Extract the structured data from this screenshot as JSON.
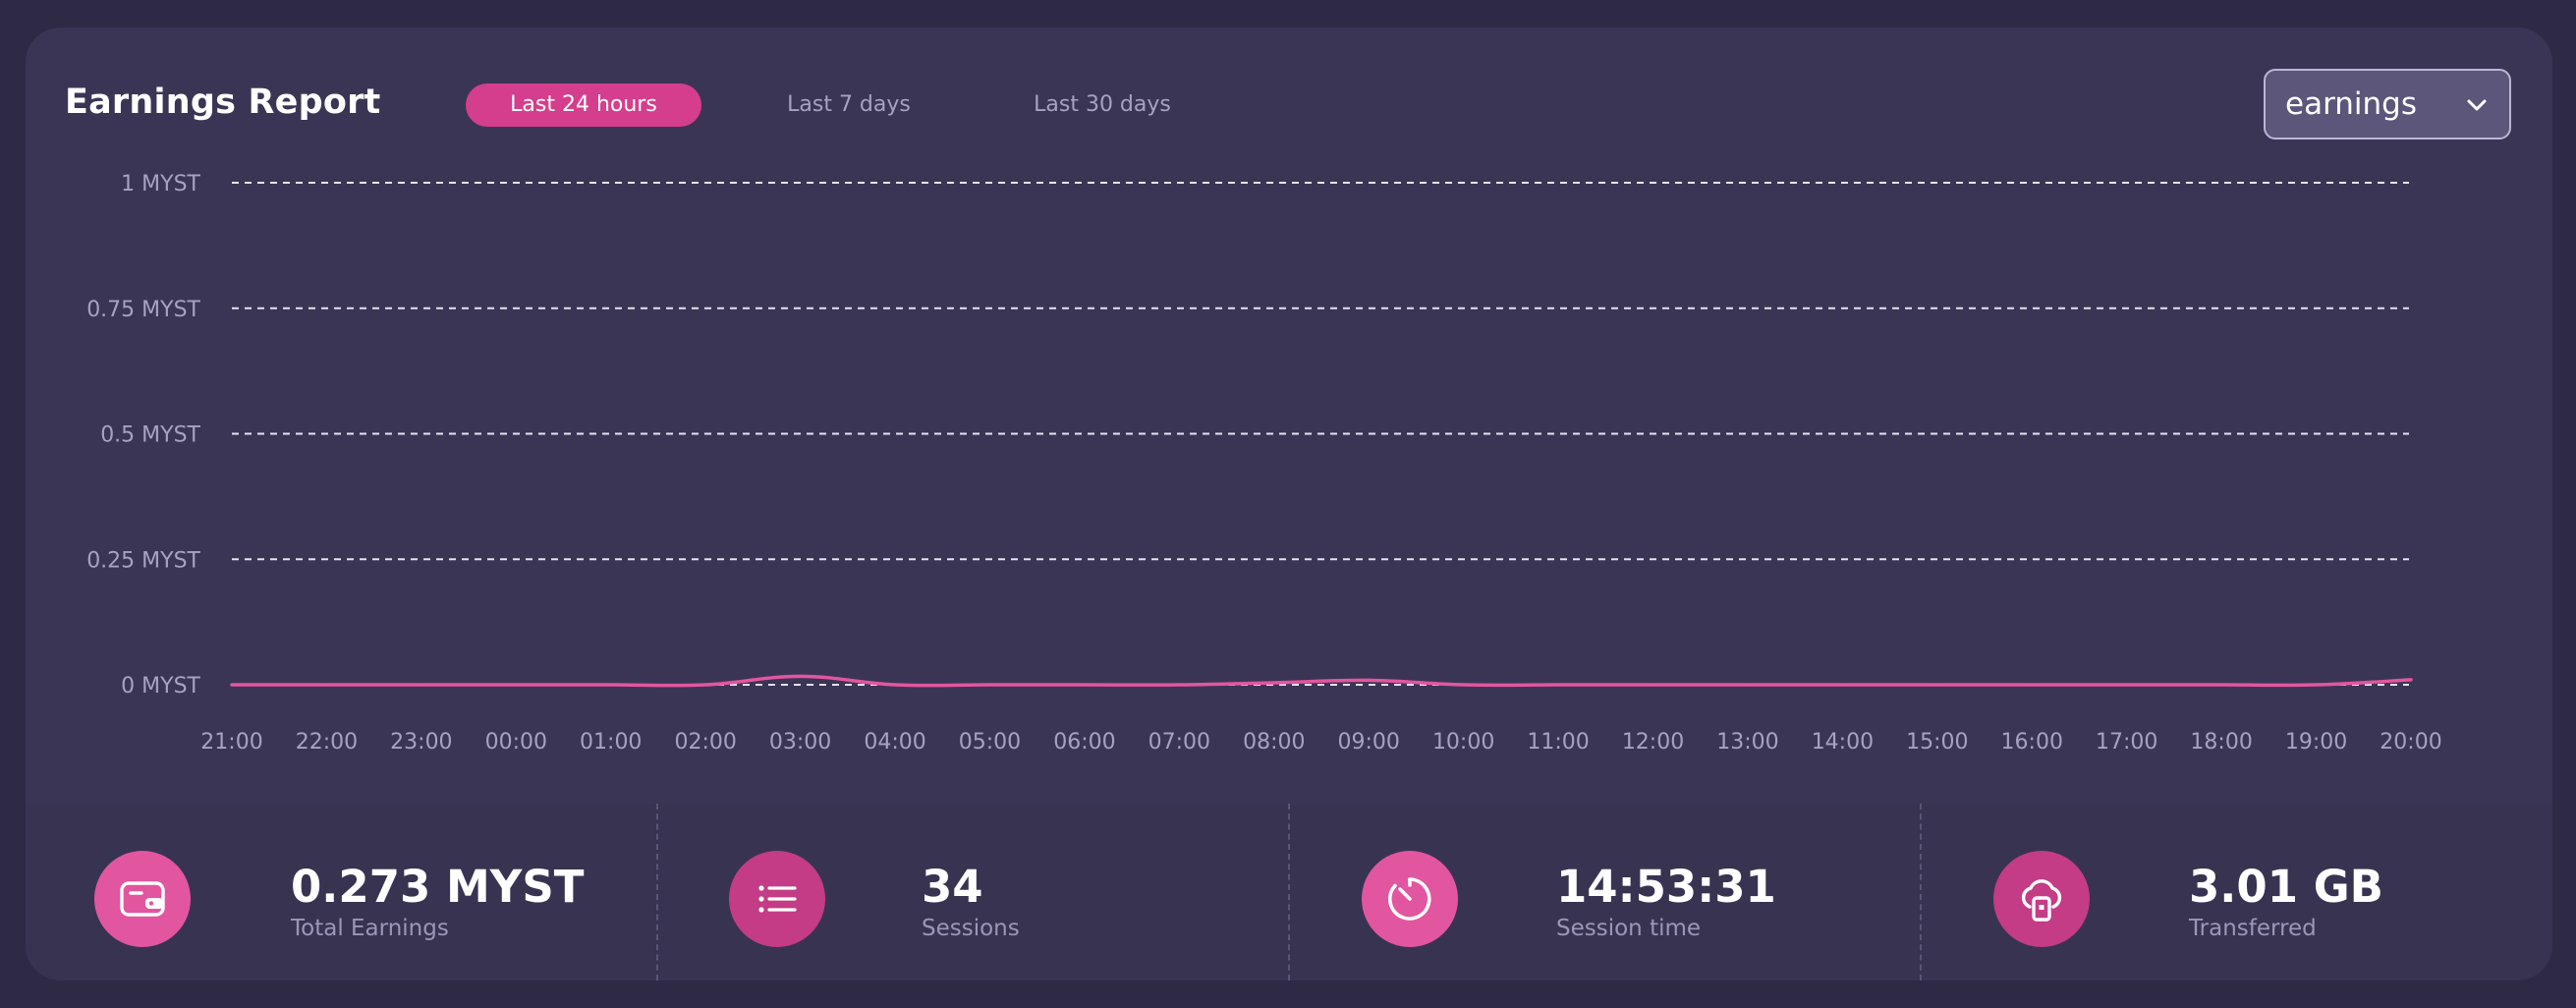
{
  "header": {
    "title": "Earnings Report",
    "tabs": [
      {
        "label": "Last 24 hours",
        "active": true
      },
      {
        "label": "Last 7 days",
        "active": false
      },
      {
        "label": "Last 30 days",
        "active": false
      }
    ],
    "metric_select": {
      "value": "earnings",
      "icon": "chevron-down-icon"
    }
  },
  "colors": {
    "accent": "#d43e8d",
    "line": "#e2569f",
    "card": "#393352",
    "background": "#2e2a45"
  },
  "chart_data": {
    "type": "line",
    "title": "",
    "xlabel": "",
    "ylabel": "",
    "x": [
      "21:00",
      "22:00",
      "23:00",
      "00:00",
      "01:00",
      "02:00",
      "03:00",
      "04:00",
      "05:00",
      "06:00",
      "07:00",
      "08:00",
      "09:00",
      "10:00",
      "11:00",
      "12:00",
      "13:00",
      "14:00",
      "15:00",
      "16:00",
      "17:00",
      "18:00",
      "19:00",
      "20:00"
    ],
    "y_ticks": [
      {
        "value": 0,
        "label": "0 MYST"
      },
      {
        "value": 0.25,
        "label": "0.25 MYST"
      },
      {
        "value": 0.5,
        "label": "0.5 MYST"
      },
      {
        "value": 0.75,
        "label": "0.75 MYST"
      },
      {
        "value": 1,
        "label": "1 MYST"
      }
    ],
    "ylim": [
      0,
      1
    ],
    "grid": true,
    "series": [
      {
        "values": [
          0,
          0,
          0,
          0,
          0,
          0,
          0.017,
          0,
          0,
          0,
          0,
          0.004,
          0.009,
          0,
          0,
          0,
          0,
          0,
          0,
          0,
          0,
          0,
          0,
          0.01
        ]
      }
    ]
  },
  "stats": [
    {
      "value": "0.273 MYST",
      "label": "Total Earnings",
      "icon": "wallet-icon",
      "color": "#e2569f"
    },
    {
      "value": "34",
      "label": "Sessions",
      "icon": "list-icon",
      "color": "#c33c85"
    },
    {
      "value": "14:53:31",
      "label": "Session time",
      "icon": "timer-icon",
      "color": "#e2569f"
    },
    {
      "value": "3.01 GB",
      "label": "Transferred",
      "icon": "cloud-transfer-icon",
      "color": "#c33c85"
    }
  ]
}
